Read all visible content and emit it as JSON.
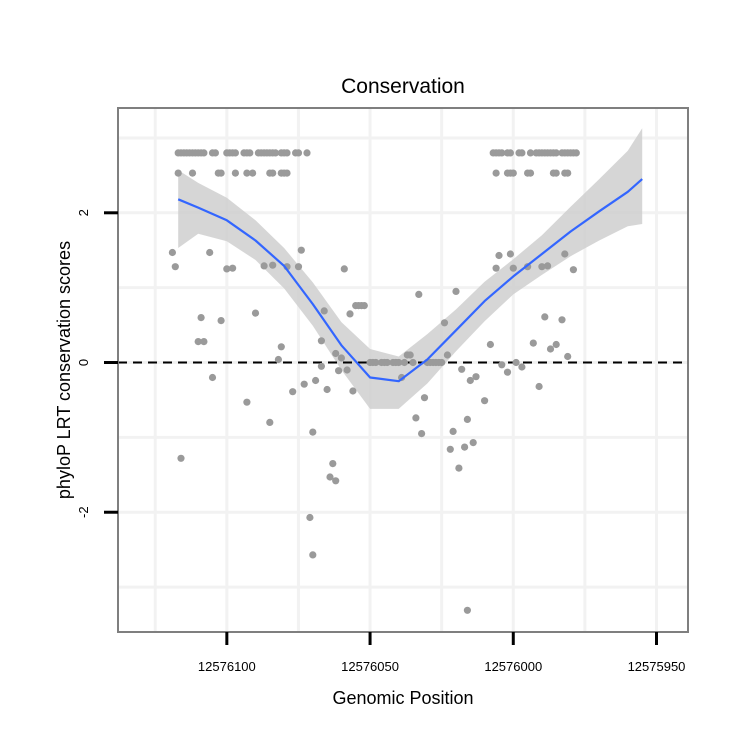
{
  "chart_data": {
    "type": "scatter",
    "title": "Conservation",
    "xlabel": "Genomic Position",
    "ylabel": "phyloP LRT conservation scores",
    "x_reversed": true,
    "xlim": [
      12576138,
      12575939
    ],
    "ylim": [
      -3.6,
      3.4
    ],
    "x_ticks": [
      12576100,
      12576050,
      12576000,
      12575950
    ],
    "x_tick_labels": [
      "12576100",
      "12576050",
      "12576000",
      "12575950"
    ],
    "y_ticks": [
      -2,
      0,
      2
    ],
    "y_tick_labels": [
      "-2",
      "0",
      "2"
    ],
    "reference_line": {
      "y": 0,
      "style": "dashed"
    },
    "grid": true,
    "colors": {
      "points": "#9a9a9a",
      "smooth_line": "#3366ff",
      "confidence_band": "#cfcfcf",
      "grid": "#f2f2f2",
      "frame": "#7f7f7f"
    },
    "points": [
      [
        12576117,
        2.8
      ],
      [
        12576116,
        2.8
      ],
      [
        12576115,
        2.8
      ],
      [
        12576114,
        2.8
      ],
      [
        12576113,
        2.8
      ],
      [
        12576112,
        2.8
      ],
      [
        12576111,
        2.8
      ],
      [
        12576110,
        2.8
      ],
      [
        12576109,
        2.8
      ],
      [
        12576108,
        2.8
      ],
      [
        12576105,
        2.8
      ],
      [
        12576104,
        2.8
      ],
      [
        12576100,
        2.8
      ],
      [
        12576099,
        2.8
      ],
      [
        12576098,
        2.8
      ],
      [
        12576097,
        2.8
      ],
      [
        12576094,
        2.8
      ],
      [
        12576093,
        2.8
      ],
      [
        12576092,
        2.8
      ],
      [
        12576089,
        2.8
      ],
      [
        12576088,
        2.8
      ],
      [
        12576087,
        2.8
      ],
      [
        12576086,
        2.8
      ],
      [
        12576085,
        2.8
      ],
      [
        12576084,
        2.8
      ],
      [
        12576083,
        2.8
      ],
      [
        12576081,
        2.8
      ],
      [
        12576080,
        2.8
      ],
      [
        12576079,
        2.8
      ],
      [
        12576076,
        2.8
      ],
      [
        12576075,
        2.8
      ],
      [
        12576072,
        2.8
      ],
      [
        12576117,
        2.53
      ],
      [
        12576112,
        2.53
      ],
      [
        12576103,
        2.53
      ],
      [
        12576102,
        2.53
      ],
      [
        12576097,
        2.53
      ],
      [
        12576093,
        2.53
      ],
      [
        12576091,
        2.53
      ],
      [
        12576085,
        2.53
      ],
      [
        12576084,
        2.53
      ],
      [
        12576081,
        2.53
      ],
      [
        12576080,
        2.53
      ],
      [
        12576079,
        2.53
      ],
      [
        12576119,
        1.47
      ],
      [
        12576118,
        1.28
      ],
      [
        12576116,
        -1.28
      ],
      [
        12576110,
        0.28
      ],
      [
        12576109,
        0.6
      ],
      [
        12576108,
        0.28
      ],
      [
        12576106,
        1.47
      ],
      [
        12576105,
        -0.2
      ],
      [
        12576102,
        0.56
      ],
      [
        12576100,
        1.25
      ],
      [
        12576098,
        1.26
      ],
      [
        12576093,
        -0.53
      ],
      [
        12576090,
        0.66
      ],
      [
        12576087,
        1.29
      ],
      [
        12576085,
        -0.8
      ],
      [
        12576084,
        1.3
      ],
      [
        12576082,
        0.04
      ],
      [
        12576081,
        0.21
      ],
      [
        12576079,
        1.28
      ],
      [
        12576077,
        -0.39
      ],
      [
        12576075,
        1.28
      ],
      [
        12576074,
        1.5
      ],
      [
        12576073,
        -0.29
      ],
      [
        12576071,
        -2.07
      ],
      [
        12576070,
        -0.93
      ],
      [
        12576070,
        -2.57
      ],
      [
        12576069,
        -0.24
      ],
      [
        12576067,
        -0.05
      ],
      [
        12576067,
        0.29
      ],
      [
        12576066,
        0.69
      ],
      [
        12576065,
        -0.36
      ],
      [
        12576064,
        -1.53
      ],
      [
        12576063,
        -1.35
      ],
      [
        12576062,
        -1.58
      ],
      [
        12576062,
        0.12
      ],
      [
        12576061,
        -0.11
      ],
      [
        12576060,
        0.06
      ],
      [
        12576059,
        1.25
      ],
      [
        12576058,
        -0.1
      ],
      [
        12576057,
        0.65
      ],
      [
        12576056,
        -0.38
      ],
      [
        12576055,
        0.76
      ],
      [
        12576054,
        0.76
      ],
      [
        12576053,
        0.76
      ],
      [
        12576052,
        0.76
      ],
      [
        12576050,
        0.0
      ],
      [
        12576049,
        0.0
      ],
      [
        12576048,
        0.0
      ],
      [
        12576046,
        0.0
      ],
      [
        12576045,
        0.0
      ],
      [
        12576044,
        0.0
      ],
      [
        12576042,
        0.0
      ],
      [
        12576041,
        0.0
      ],
      [
        12576040,
        0.0
      ],
      [
        12576039,
        -0.2
      ],
      [
        12576038,
        0.0
      ],
      [
        12576037,
        0.1
      ],
      [
        12576036,
        0.1
      ],
      [
        12576035,
        0.0
      ],
      [
        12576034,
        -0.74
      ],
      [
        12576033,
        0.91
      ],
      [
        12576032,
        -0.95
      ],
      [
        12576031,
        -0.47
      ],
      [
        12576030,
        0.0
      ],
      [
        12576029,
        0.0
      ],
      [
        12576028,
        0.0
      ],
      [
        12576027,
        0.0
      ],
      [
        12576026,
        0.0
      ],
      [
        12576025,
        0.0
      ],
      [
        12576024,
        0.53
      ],
      [
        12576023,
        0.1
      ],
      [
        12576022,
        -1.16
      ],
      [
        12576021,
        -0.92
      ],
      [
        12576020,
        0.95
      ],
      [
        12576019,
        -1.41
      ],
      [
        12576018,
        -0.09
      ],
      [
        12576017,
        -1.13
      ],
      [
        12576016,
        -0.76
      ],
      [
        12576016,
        -3.31
      ],
      [
        12576015,
        -0.24
      ],
      [
        12576014,
        -1.07
      ],
      [
        12576013,
        -0.19
      ],
      [
        12576010,
        -0.51
      ],
      [
        12576008,
        0.24
      ],
      [
        12576006,
        1.26
      ],
      [
        12576005,
        1.43
      ],
      [
        12576004,
        -0.03
      ],
      [
        12576002,
        -0.13
      ],
      [
        12576001,
        1.45
      ],
      [
        12576000,
        1.26
      ],
      [
        12575999,
        0.0
      ],
      [
        12575997,
        -0.06
      ],
      [
        12575995,
        1.28
      ],
      [
        12575993,
        0.26
      ],
      [
        12575991,
        -0.32
      ],
      [
        12575990,
        1.28
      ],
      [
        12575989,
        0.61
      ],
      [
        12575988,
        1.29
      ],
      [
        12575987,
        0.18
      ],
      [
        12575985,
        0.24
      ],
      [
        12575983,
        0.57
      ],
      [
        12575982,
        1.45
      ],
      [
        12575981,
        0.08
      ],
      [
        12575979,
        1.24
      ],
      [
        12576007,
        2.8
      ],
      [
        12576006,
        2.8
      ],
      [
        12576005,
        2.8
      ],
      [
        12576004,
        2.8
      ],
      [
        12576002,
        2.8
      ],
      [
        12576001,
        2.8
      ],
      [
        12575998,
        2.8
      ],
      [
        12575997,
        2.8
      ],
      [
        12575994,
        2.8
      ],
      [
        12575992,
        2.8
      ],
      [
        12575991,
        2.8
      ],
      [
        12575990,
        2.8
      ],
      [
        12575989,
        2.8
      ],
      [
        12575988,
        2.8
      ],
      [
        12575987,
        2.8
      ],
      [
        12575986,
        2.8
      ],
      [
        12575985,
        2.8
      ],
      [
        12575983,
        2.8
      ],
      [
        12575982,
        2.8
      ],
      [
        12575981,
        2.8
      ],
      [
        12575980,
        2.8
      ],
      [
        12575979,
        2.8
      ],
      [
        12575978,
        2.8
      ],
      [
        12576006,
        2.53
      ],
      [
        12576002,
        2.53
      ],
      [
        12576001,
        2.53
      ],
      [
        12576000,
        2.53
      ],
      [
        12575995,
        2.53
      ],
      [
        12575994,
        2.53
      ],
      [
        12575986,
        2.53
      ],
      [
        12575985,
        2.53
      ],
      [
        12575982,
        2.53
      ],
      [
        12575981,
        2.53
      ]
    ],
    "smooth": {
      "x": [
        12576117,
        12576110,
        12576100,
        12576090,
        12576080,
        12576070,
        12576060,
        12576050,
        12576040,
        12576030,
        12576020,
        12576010,
        12576000,
        12575990,
        12575980,
        12575970,
        12575960,
        12575955
      ],
      "fit": [
        2.18,
        2.07,
        1.9,
        1.63,
        1.29,
        0.78,
        0.23,
        -0.2,
        -0.25,
        0.04,
        0.43,
        0.82,
        1.15,
        1.45,
        1.75,
        2.02,
        2.28,
        2.45
      ],
      "lower": [
        1.53,
        1.72,
        1.62,
        1.37,
        0.99,
        0.49,
        -0.1,
        -0.62,
        -0.62,
        -0.28,
        0.15,
        0.55,
        0.91,
        1.17,
        1.42,
        1.63,
        1.82,
        1.85
      ],
      "upper": [
        2.57,
        2.4,
        2.2,
        1.9,
        1.53,
        1.07,
        0.54,
        0.18,
        0.08,
        0.38,
        0.71,
        1.08,
        1.38,
        1.7,
        2.08,
        2.45,
        2.83,
        3.13
      ]
    }
  }
}
